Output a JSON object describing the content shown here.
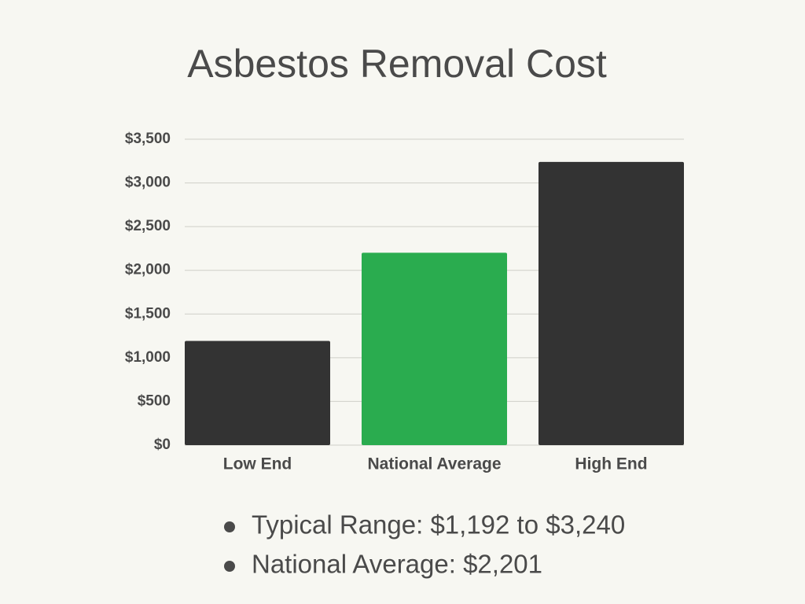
{
  "chart_data": {
    "type": "bar",
    "title": "Asbestos Removal Cost",
    "categories": [
      "Low End",
      "National Average",
      "High End"
    ],
    "values": [
      1192,
      2201,
      3240
    ],
    "colors": [
      "#333333",
      "#2aac4f",
      "#333333"
    ],
    "ylim": [
      0,
      3500
    ],
    "yticks": [
      {
        "value": 0,
        "label": "$0"
      },
      {
        "value": 500,
        "label": "$500"
      },
      {
        "value": 1000,
        "label": "$1,000"
      },
      {
        "value": 1500,
        "label": "$1,500"
      },
      {
        "value": 2000,
        "label": "$2,000"
      },
      {
        "value": 2500,
        "label": "$2,500"
      },
      {
        "value": 3000,
        "label": "$3,000"
      },
      {
        "value": 3500,
        "label": "$3,500"
      }
    ],
    "grid": true,
    "annotations": [
      "Typical Range: $1,192 to $3,240",
      "National Average: $2,201"
    ]
  }
}
